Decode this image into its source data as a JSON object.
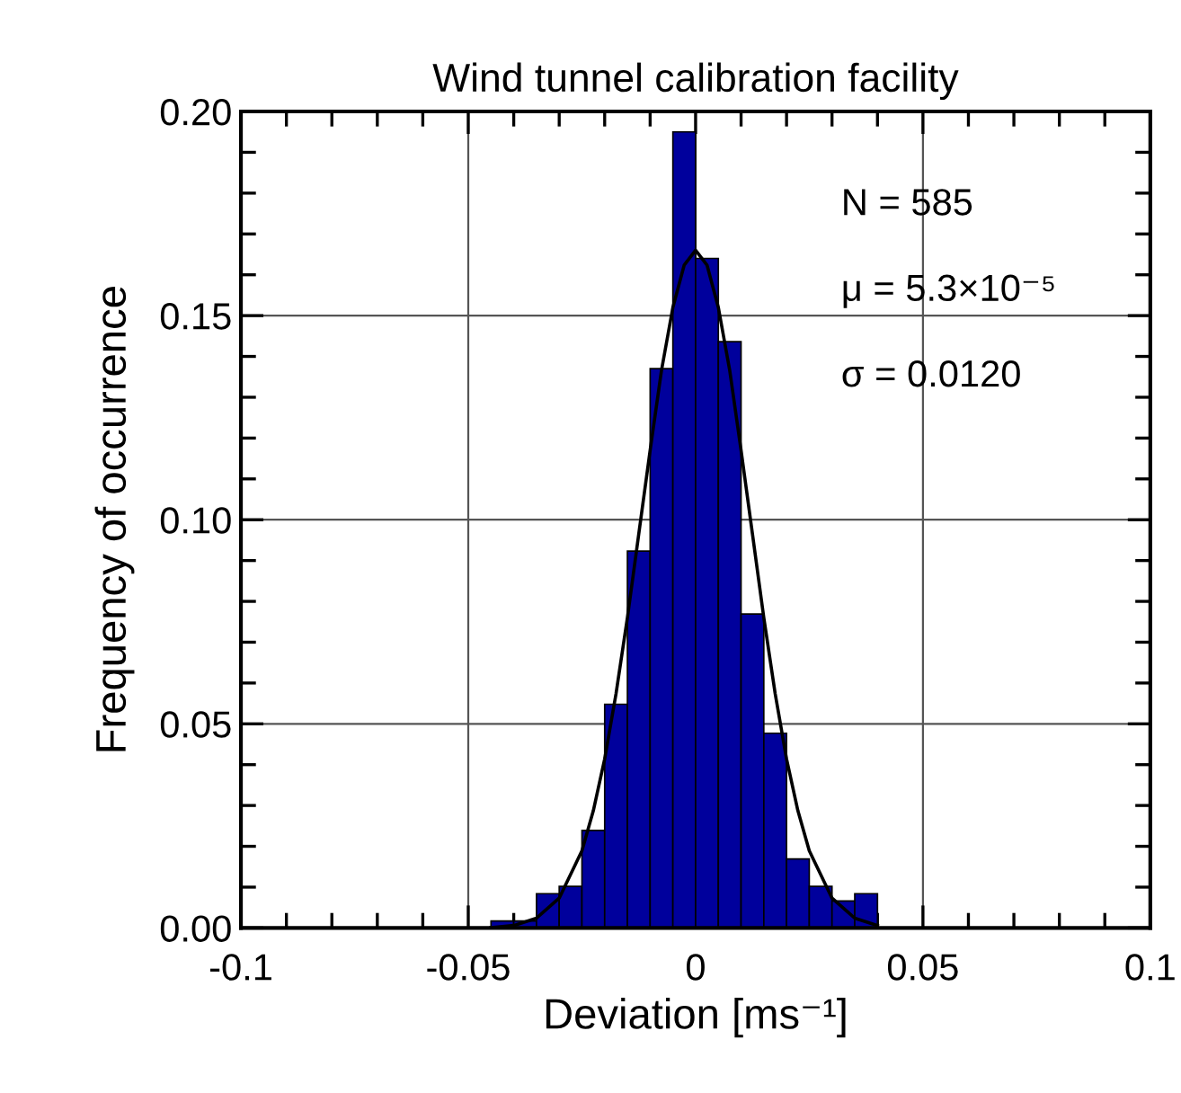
{
  "chart_data": {
    "type": "histogram",
    "title": "Wind tunnel calibration facility",
    "xlabel": "Deviation [ms⁻¹]",
    "ylabel": "Frequency of occurrence",
    "bins": [
      -0.045,
      -0.04,
      -0.035,
      -0.03,
      -0.025,
      -0.02,
      -0.015,
      -0.01,
      -0.005,
      0,
      0.005,
      0.01,
      0.015,
      0.02,
      0.025,
      0.03,
      0.035,
      0.04
    ],
    "values": [
      0.0017,
      0.0017,
      0.0084,
      0.0102,
      0.0239,
      0.0548,
      0.0923,
      0.137,
      0.195,
      0.164,
      0.1436,
      0.0769,
      0.0477,
      0.0169,
      0.0102,
      0.0066,
      0.0084
    ],
    "color": "#00009c",
    "series": [
      {
        "type": "line",
        "color": "#000000",
        "x": [
          -0.045,
          -0.04,
          -0.035,
          -0.03,
          -0.025,
          -0.0225,
          -0.02,
          -0.0175,
          -0.015,
          -0.0125,
          -0.01,
          -0.0075,
          -0.005,
          -0.0025,
          0,
          0.0025,
          0.005,
          0.0075,
          0.01,
          0.0125,
          0.015,
          0.0175,
          0.02,
          0.0225,
          0.025,
          0.03,
          0.035,
          0.04
        ],
        "values": [
          0.0001,
          0.0006,
          0.0024,
          0.0073,
          0.0189,
          0.0287,
          0.0414,
          0.0574,
          0.076,
          0.0965,
          0.117,
          0.1366,
          0.152,
          0.1624,
          0.166,
          0.1624,
          0.152,
          0.1366,
          0.117,
          0.0965,
          0.076,
          0.0574,
          0.0414,
          0.0287,
          0.0189,
          0.0073,
          0.0024,
          0.0006
        ]
      }
    ],
    "xlim": [
      -0.1,
      0.1
    ],
    "ylim": [
      0,
      0.2
    ],
    "xticks": [
      -0.1,
      -0.05,
      0,
      0.05,
      0.1
    ],
    "yticks": [
      {
        "value": 0,
        "label": "0.00"
      },
      0.05,
      {
        "value": 0.1,
        "label": "0.10"
      },
      0.15,
      {
        "value": 0.2,
        "label": "0.20"
      }
    ],
    "grid": true,
    "annotations": [
      "N = 585",
      "μ = 5.3×10⁻⁵",
      "σ = 0.0120"
    ]
  }
}
